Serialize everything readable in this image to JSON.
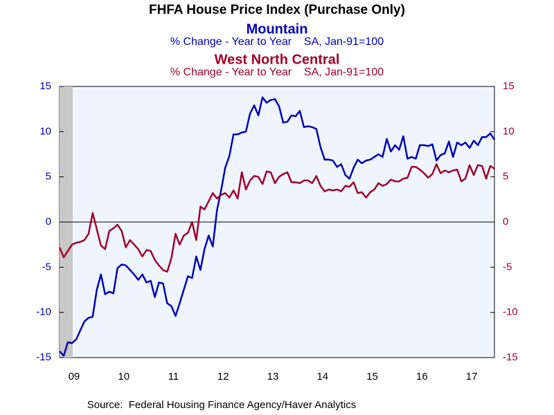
{
  "chart_data": {
    "type": "line",
    "title": "FHFA House Price Index (Purchase Only)",
    "source": "Source:  Federal Housing Finance Agency/Haver Analytics",
    "categories": [
      null,
      null,
      null,
      "09",
      null,
      null,
      null,
      null,
      null,
      null,
      null,
      null,
      null,
      null,
      null,
      "10",
      null,
      null,
      null,
      null,
      null,
      null,
      null,
      null,
      null,
      null,
      null,
      "11",
      null,
      null,
      null,
      null,
      null,
      null,
      null,
      null,
      null,
      null,
      null,
      "12",
      null,
      null,
      null,
      null,
      null,
      null,
      null,
      null,
      null,
      null,
      null,
      "13",
      null,
      null,
      null,
      null,
      null,
      null,
      null,
      null,
      null,
      null,
      null,
      "14",
      null,
      null,
      null,
      null,
      null,
      null,
      null,
      null,
      null,
      null,
      null,
      "15",
      null,
      null,
      null,
      null,
      null,
      null,
      null,
      null,
      null,
      null,
      null,
      "16",
      null,
      null,
      null,
      null,
      null,
      null,
      null,
      null,
      null,
      null,
      null,
      "17",
      null,
      null,
      null,
      null,
      null,
      null
    ],
    "series": [
      {
        "name": "Mountain",
        "subtitle": "% Change - Year to Year    SA, Jan-91=100",
        "color": "#0000b4",
        "values": [
          -14.3,
          -14.8,
          -13.3,
          -13.4,
          -13,
          -12,
          -11,
          -10.6,
          -10.5,
          -7.5,
          -5.8,
          -8,
          -7.7,
          -7.9,
          -5.1,
          -4.7,
          -4.8,
          -5.3,
          -5.8,
          -6.4,
          -5.8,
          -6.7,
          -6.5,
          -8.3,
          -6.7,
          -6.8,
          -9,
          -9.3,
          -10.4,
          -9,
          -7.5,
          -6,
          -6.2,
          -3.8,
          -5.3,
          -3,
          -1.5,
          -2.7,
          1.3,
          3.5,
          6,
          7.3,
          9.7,
          9.7,
          9.9,
          10,
          12,
          12.9,
          11.8,
          13.8,
          13.2,
          13.5,
          13.6,
          12.8,
          11,
          11.1,
          11.8,
          11.7,
          12.3,
          10.5,
          10.6,
          10.5,
          10.3,
          8.3,
          6.9,
          6.9,
          6.8,
          6.1,
          6.4,
          5.2,
          4.8,
          6,
          6.9,
          6.5,
          6.8,
          6.9,
          7.2,
          7.5,
          7.2,
          9.2,
          7.8,
          8.5,
          8,
          9.5,
          7,
          7.2,
          7,
          8.5,
          8.5,
          8.4,
          8.6,
          6.8,
          7.4,
          7.6,
          8.9,
          7.2,
          8.8,
          8.5,
          8.8,
          8.2,
          9,
          8.5,
          9.4,
          9.4,
          9.8,
          9.1
        ]
      },
      {
        "name": "West North Central",
        "subtitle": "% Change - Year to Year    SA, Jan-91=100",
        "color": "#a0002a",
        "axis": "y2",
        "values": [
          -2.8,
          -3.9,
          -3.2,
          -2.5,
          -2.3,
          -2.2,
          -2.0,
          -1.3,
          1.0,
          -0.8,
          -2.6,
          -3.0,
          -1.0,
          -0.7,
          -0.3,
          -1.0,
          -2.8,
          -2.0,
          -2.5,
          -3.0,
          -3.8,
          -3.1,
          -3.2,
          -4.2,
          -4.8,
          -5.3,
          -5.5,
          -4.0,
          -1.3,
          -2.5,
          -1.5,
          -1.2,
          0.0,
          -2.0,
          1.7,
          1.4,
          2.3,
          3.2,
          2.6,
          3.0,
          3.2,
          2.7,
          3.5,
          2.6,
          5.5,
          3.6,
          4.6,
          5.1,
          5.0,
          4.2,
          5.6,
          5.5,
          4.3,
          5.0,
          5.3,
          5.5,
          4.4,
          4.4,
          4.3,
          4.6,
          4.6,
          4.3,
          5.1,
          4.0,
          3.4,
          3.6,
          3.5,
          3.6,
          3.4,
          4.0,
          3.9,
          4.4,
          3.2,
          3.3,
          2.7,
          3.3,
          3.6,
          4.3,
          4.0,
          4.2,
          4.7,
          4.5,
          4.5,
          4.8,
          4.9,
          6.1,
          6.1,
          5.8,
          5.4,
          4.9,
          5.3,
          6.4,
          5.4,
          5.7,
          5.5,
          5.7,
          5.8,
          4.5,
          4.8,
          6.3,
          5.2,
          6.3,
          6.2,
          4.8,
          6.2,
          5.9
        ]
      }
    ],
    "ylim": [
      -15,
      15
    ],
    "yticks": [
      -15,
      -10,
      -5,
      0,
      5,
      10,
      15
    ],
    "y2lim": [
      -15,
      15
    ],
    "y2ticks": [
      -15,
      -10,
      -5,
      0,
      5,
      10,
      15
    ]
  }
}
